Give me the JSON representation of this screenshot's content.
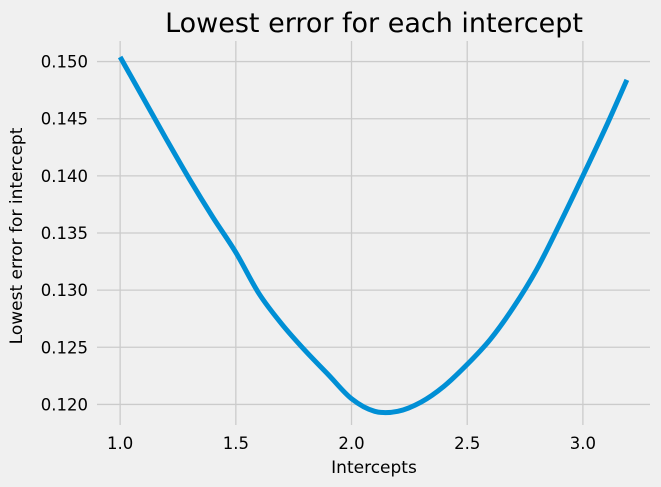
{
  "chart_data": {
    "type": "line",
    "title": "Lowest error for each intercept",
    "xlabel": "Intercepts",
    "ylabel": "Lowest error for intercept",
    "xlim": [
      0.9,
      3.29
    ],
    "ylim": [
      0.1182,
      0.1518
    ],
    "xticks": [
      1.0,
      1.5,
      2.0,
      2.5,
      3.0
    ],
    "xtick_labels": [
      "1.0",
      "1.5",
      "2.0",
      "2.5",
      "3.0"
    ],
    "yticks": [
      0.12,
      0.125,
      0.13,
      0.135,
      0.14,
      0.145,
      0.15
    ],
    "ytick_labels": [
      "0.120",
      "0.125",
      "0.130",
      "0.135",
      "0.140",
      "0.145",
      "0.150"
    ],
    "grid": true,
    "line_color": "#008fd5",
    "background_color": "#f0f0f0",
    "grid_color": "#cbcbcb",
    "series": [
      {
        "x": [
          1.0,
          1.1,
          1.2,
          1.3,
          1.4,
          1.5,
          1.6,
          1.7,
          1.8,
          1.9,
          2.0,
          2.1,
          2.2,
          2.3,
          2.4,
          2.5,
          2.6,
          2.7,
          2.8,
          2.9,
          3.0,
          3.1,
          3.19
        ],
        "values": [
          0.1504,
          0.1468,
          0.1432,
          0.1397,
          0.1364,
          0.1333,
          0.1297,
          0.127,
          0.1247,
          0.1226,
          0.1205,
          0.1194,
          0.1194,
          0.1202,
          0.1216,
          0.1235,
          0.1257,
          0.1285,
          0.1318,
          0.1358,
          0.14,
          0.1443,
          0.1484
        ]
      }
    ]
  }
}
